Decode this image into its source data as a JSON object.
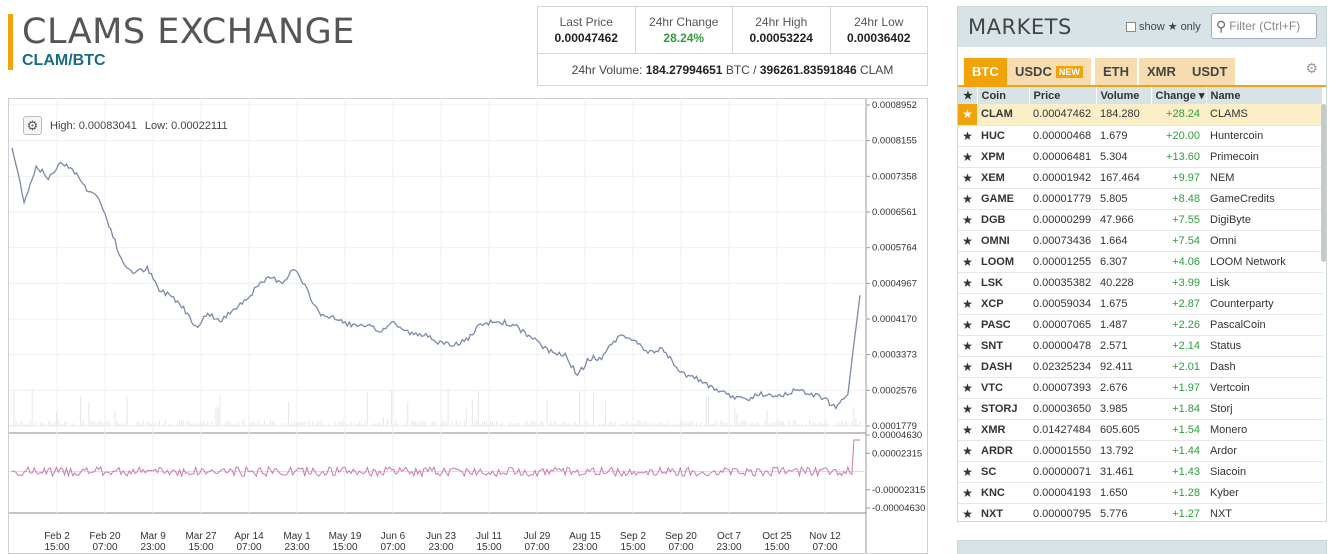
{
  "header": {
    "exchange_title": "CLAMS EXCHANGE",
    "pair": "CLAM/BTC"
  },
  "stats": {
    "last_price_label": "Last Price",
    "last_price": "0.00047462",
    "change_label": "24hr Change",
    "change": "28.24%",
    "high_label": "24hr High",
    "high": "0.00053224",
    "low_label": "24hr Low",
    "low": "0.00036402",
    "volume_label": "24hr Volume:",
    "volume_btc": "184.27994651",
    "btc_unit": "BTC /",
    "volume_clam": "396261.83591846",
    "clam_unit": "CLAM"
  },
  "chart_data": {
    "type": "line",
    "title": "",
    "high_text": "High: 0.00083041",
    "low_text": "Low: 0.00022111",
    "y_ticks": [
      "0.0008952",
      "0.0008155",
      "0.0007358",
      "0.0006561",
      "0.0005764",
      "0.0004967",
      "0.0004170",
      "0.0003373",
      "0.0002576",
      "0.0001779"
    ],
    "ylim": [
      0.0001779,
      0.0008952
    ],
    "indicator_ticks": [
      "0.00004630",
      "0.00002315",
      "-0.00002315",
      "-0.00004630"
    ],
    "x_ticks": [
      [
        "Feb 2",
        "15:00"
      ],
      [
        "Feb 20",
        "07:00"
      ],
      [
        "Mar 9",
        "23:00"
      ],
      [
        "Mar 27",
        "15:00"
      ],
      [
        "Apr 14",
        "07:00"
      ],
      [
        "May 1",
        "23:00"
      ],
      [
        "May 19",
        "15:00"
      ],
      [
        "Jun 6",
        "07:00"
      ],
      [
        "Jun 23",
        "23:00"
      ],
      [
        "Jul 11",
        "15:00"
      ],
      [
        "Jul 29",
        "07:00"
      ],
      [
        "Aug 15",
        "23:00"
      ],
      [
        "Sep 2",
        "15:00"
      ],
      [
        "Sep 20",
        "07:00"
      ],
      [
        "Oct 7",
        "23:00"
      ],
      [
        "Oct 25",
        "15:00"
      ],
      [
        "Nov 12",
        "07:00"
      ]
    ],
    "series": [
      {
        "values": [
          0.0008,
          0.00068,
          0.00076,
          0.00073,
          0.00077,
          0.00075,
          0.00071,
          0.00069,
          0.00062,
          0.00054,
          0.00052,
          0.00053,
          0.00048,
          0.00047,
          0.00044,
          0.0004,
          0.00043,
          0.00041,
          0.00044,
          0.00046,
          0.00049,
          0.00051,
          0.0005,
          0.00053,
          0.00048,
          0.00043,
          0.00042,
          0.00041,
          0.0004,
          0.0004,
          0.00039,
          0.00041,
          0.00039,
          0.00038,
          0.00038,
          0.00036,
          0.00036,
          0.00037,
          0.0004,
          0.00041,
          0.00041,
          0.0004,
          0.00038,
          0.00036,
          0.00034,
          0.00034,
          0.00029,
          0.00033,
          0.00033,
          0.00037,
          0.00038,
          0.00036,
          0.00034,
          0.00035,
          0.00031,
          0.00029,
          0.00028,
          0.00026,
          0.00025,
          0.00024,
          0.00024,
          0.00025,
          0.00024,
          0.00025,
          0.00026,
          0.00025,
          0.00024,
          0.00022,
          0.00025,
          0.00047
        ]
      }
    ]
  },
  "markets": {
    "title": "MARKETS",
    "show_label": "show",
    "only_label": "only",
    "filter_placeholder": "Filter (Ctrl+F)",
    "tabs": [
      {
        "label": "BTC",
        "active": true
      },
      {
        "label": "USDC",
        "badge": "NEW"
      },
      {
        "label": "ETH"
      },
      {
        "label": "XMR"
      },
      {
        "label": "USDT"
      }
    ],
    "columns": [
      "Coin",
      "Price",
      "Volume",
      "Change ▾",
      "Name"
    ],
    "rows": [
      {
        "coin": "CLAM",
        "price": "0.00047462",
        "volume": "184.280",
        "change": "+28.24",
        "name": "CLAMS",
        "selected": true
      },
      {
        "coin": "HUC",
        "price": "0.00000468",
        "volume": "1.679",
        "change": "+20.00",
        "name": "Huntercoin"
      },
      {
        "coin": "XPM",
        "price": "0.00006481",
        "volume": "5.304",
        "change": "+13.60",
        "name": "Primecoin"
      },
      {
        "coin": "XEM",
        "price": "0.00001942",
        "volume": "167.464",
        "change": "+9.97",
        "name": "NEM"
      },
      {
        "coin": "GAME",
        "price": "0.00001779",
        "volume": "5.805",
        "change": "+8.48",
        "name": "GameCredits"
      },
      {
        "coin": "DGB",
        "price": "0.00000299",
        "volume": "47.966",
        "change": "+7.55",
        "name": "DigiByte"
      },
      {
        "coin": "OMNI",
        "price": "0.00073436",
        "volume": "1.664",
        "change": "+7.54",
        "name": "Omni"
      },
      {
        "coin": "LOOM",
        "price": "0.00001255",
        "volume": "6.307",
        "change": "+4.06",
        "name": "LOOM Network"
      },
      {
        "coin": "LSK",
        "price": "0.00035382",
        "volume": "40.228",
        "change": "+3.99",
        "name": "Lisk"
      },
      {
        "coin": "XCP",
        "price": "0.00059034",
        "volume": "1.675",
        "change": "+2.87",
        "name": "Counterparty"
      },
      {
        "coin": "PASC",
        "price": "0.00007065",
        "volume": "1.487",
        "change": "+2.26",
        "name": "PascalCoin"
      },
      {
        "coin": "SNT",
        "price": "0.00000478",
        "volume": "2.571",
        "change": "+2.14",
        "name": "Status"
      },
      {
        "coin": "DASH",
        "price": "0.02325234",
        "volume": "92.411",
        "change": "+2.01",
        "name": "Dash"
      },
      {
        "coin": "VTC",
        "price": "0.00007393",
        "volume": "2.676",
        "change": "+1.97",
        "name": "Vertcoin"
      },
      {
        "coin": "STORJ",
        "price": "0.00003650",
        "volume": "3.985",
        "change": "+1.84",
        "name": "Storj"
      },
      {
        "coin": "XMR",
        "price": "0.01427484",
        "volume": "605.605",
        "change": "+1.54",
        "name": "Monero"
      },
      {
        "coin": "ARDR",
        "price": "0.00001550",
        "volume": "13.792",
        "change": "+1.44",
        "name": "Ardor"
      },
      {
        "coin": "SC",
        "price": "0.00000071",
        "volume": "31.461",
        "change": "+1.43",
        "name": "Siacoin"
      },
      {
        "coin": "KNC",
        "price": "0.00004193",
        "volume": "1.650",
        "change": "+1.28",
        "name": "Kyber"
      },
      {
        "coin": "NXT",
        "price": "0.00000795",
        "volume": "5.776",
        "change": "+1.27",
        "name": "NXT"
      }
    ]
  },
  "colors": {
    "accent": "#f0a30a",
    "pair": "#1b6b84",
    "positive": "#2e9e3e",
    "price_line": "#7a8aa8",
    "indicator_line": "#c97bb0"
  },
  "icons": {
    "chart_settings": "gear-icon",
    "market_settings": "gear-icon",
    "filter": "search-icon",
    "favorite": "star-icon"
  }
}
